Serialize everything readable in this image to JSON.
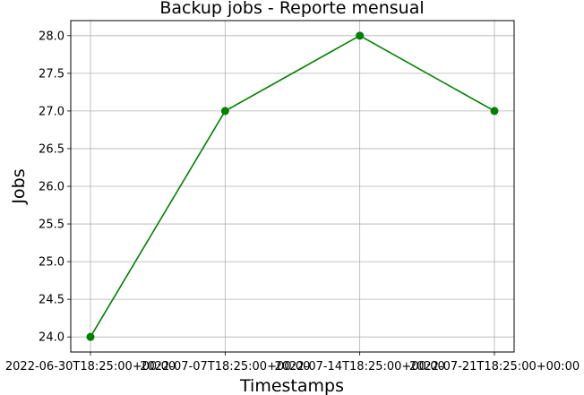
{
  "chart_data": {
    "type": "line",
    "title": "Backup jobs - Reporte mensual",
    "xlabel": "Timestamps",
    "ylabel": "Jobs",
    "x": [
      "2022-06-30T18:25:00+00:00",
      "2022-07-07T18:25:00+00:00",
      "2022-07-14T18:25:00+00:00",
      "2022-07-21T18:25:00+00:00"
    ],
    "series": [
      {
        "values": [
          24,
          27,
          28,
          27
        ],
        "color": "#008000",
        "marker": "circle"
      }
    ],
    "ylim": [
      23.8,
      28.2
    ],
    "yticks": [
      24.0,
      24.5,
      25.0,
      25.5,
      26.0,
      26.5,
      27.0,
      27.5,
      28.0
    ],
    "ytick_labels": [
      "24.0",
      "24.5",
      "25.0",
      "25.5",
      "26.0",
      "26.5",
      "27.0",
      "27.5",
      "28.0"
    ],
    "grid": true,
    "legend": false
  }
}
